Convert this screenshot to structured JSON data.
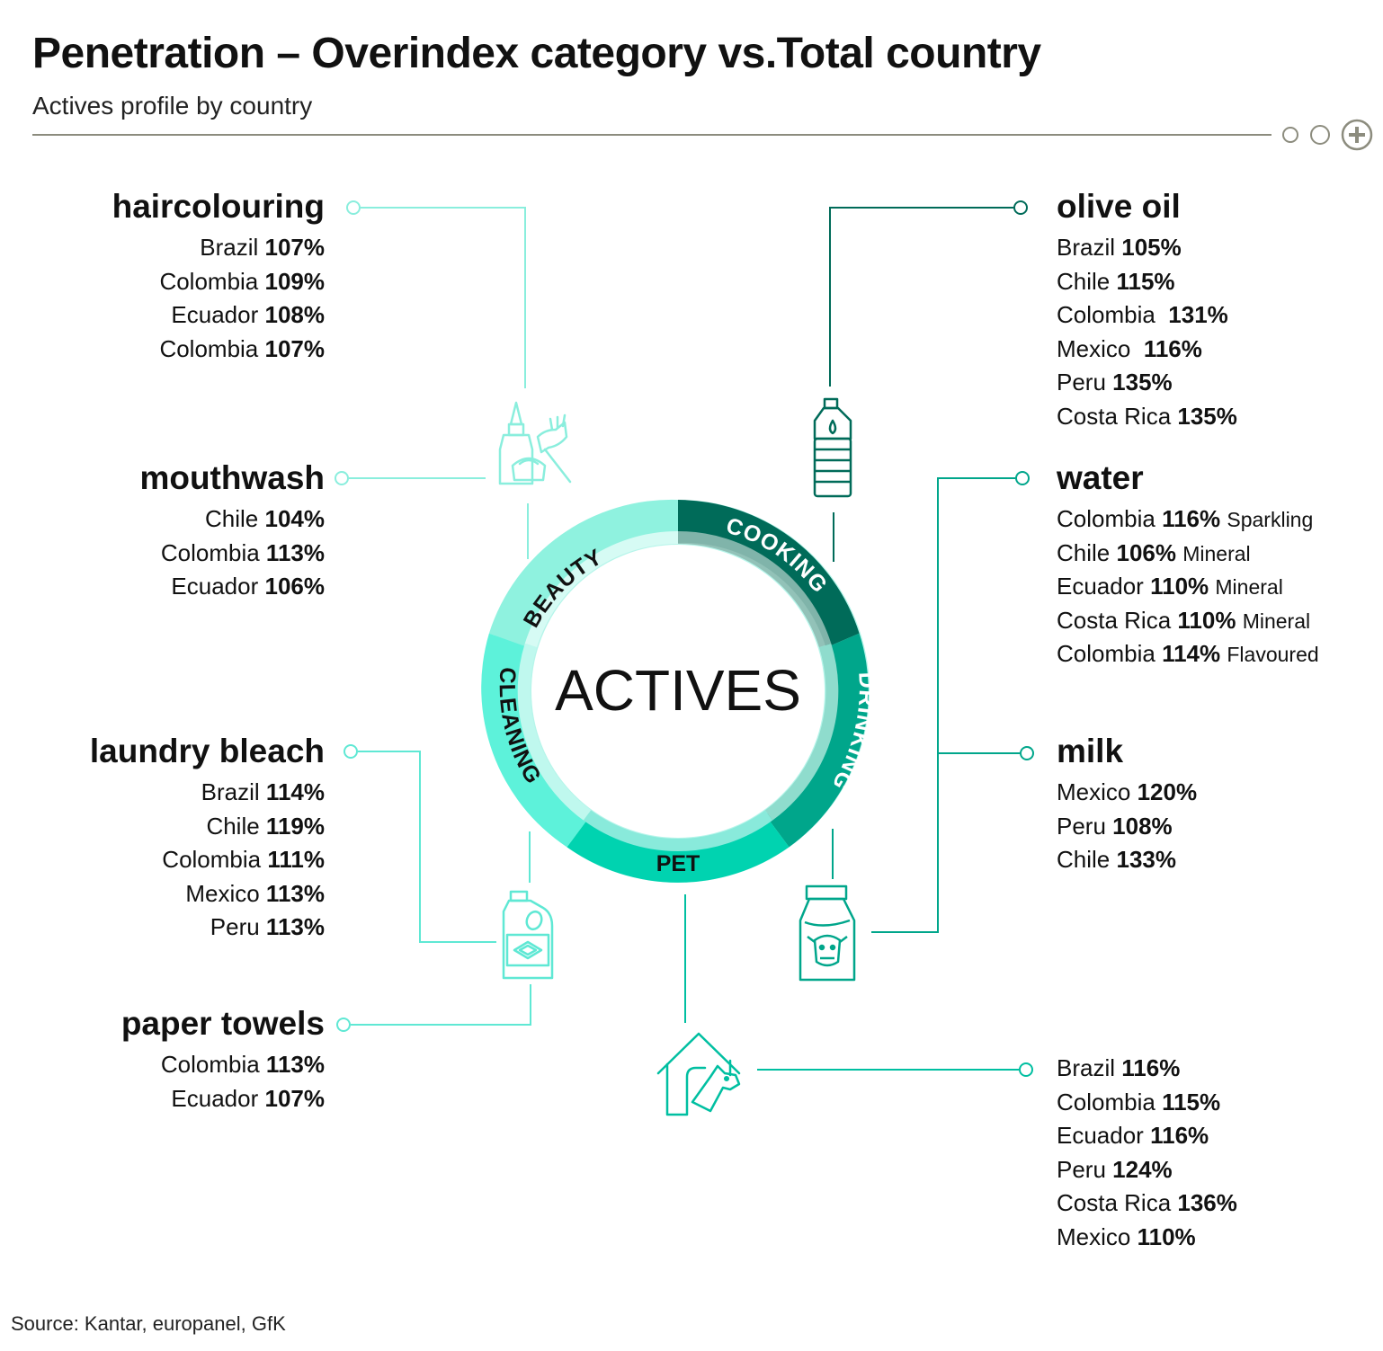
{
  "title": "Penetration – Overindex category vs.Total country",
  "subtitle": "Actives profile by country",
  "source": "Source: Kantar, europanel, GfK",
  "center_label": "ACTIVES",
  "ring": [
    {
      "label": "BEAUTY",
      "color": "#8ff2df"
    },
    {
      "label": "COOKING",
      "color": "#006b59"
    },
    {
      "label": "DRINKING",
      "color": "#00a68b"
    },
    {
      "label": "PET",
      "color": "#00d3b0"
    },
    {
      "label": "CLEANING",
      "color": "#5df2da"
    }
  ],
  "colors": {
    "beauty_line": "#8aeedd",
    "cooking_line": "#006b59",
    "drinking_line": "#00a68b",
    "pet_line": "#00bfa1",
    "cleaning_line": "#5fe8d4"
  },
  "icons": [
    "hair-dye-icon",
    "oil-bottle-icon",
    "milk-bottle-icon",
    "pet-house-icon",
    "bleach-bottle-icon"
  ],
  "categories": {
    "haircolouring": {
      "name": "haircolouring",
      "rows": [
        {
          "country": "Brazil",
          "value": "107%"
        },
        {
          "country": "Colombia",
          "value": "109%"
        },
        {
          "country": "Ecuador",
          "value": "108%"
        },
        {
          "country": "Colombia",
          "value": "107%"
        }
      ]
    },
    "mouthwash": {
      "name": "mouthwash",
      "rows": [
        {
          "country": "Chile",
          "value": "104%"
        },
        {
          "country": "Colombia",
          "value": "113%"
        },
        {
          "country": "Ecuador",
          "value": "106%"
        }
      ]
    },
    "laundry_bleach": {
      "name": "laundry bleach",
      "rows": [
        {
          "country": "Brazil",
          "value": "114%"
        },
        {
          "country": "Chile",
          "value": "119%"
        },
        {
          "country": "Colombia",
          "value": "111%"
        },
        {
          "country": "Mexico",
          "value": "113%"
        },
        {
          "country": "Peru",
          "value": "113%"
        }
      ]
    },
    "paper_towels": {
      "name": "paper towels",
      "rows": [
        {
          "country": "Colombia",
          "value": "113%"
        },
        {
          "country": "Ecuador",
          "value": "107%"
        }
      ]
    },
    "olive_oil": {
      "name": "olive oil",
      "rows": [
        {
          "country": "Brazil",
          "value": "105%"
        },
        {
          "country": "Chile",
          "value": "115%"
        },
        {
          "country": "Colombia",
          "value": "131%"
        },
        {
          "country": "Mexico",
          "value": "116%"
        },
        {
          "country": "Peru",
          "value": "135%"
        },
        {
          "country": "Costa Rica",
          "value": "135%"
        }
      ]
    },
    "water": {
      "name": "water",
      "rows": [
        {
          "country": "Colombia",
          "value": "116%",
          "type": "Sparkling"
        },
        {
          "country": "Chile",
          "value": "106%",
          "type": "Mineral"
        },
        {
          "country": "Ecuador",
          "value": "110%",
          "type": "Mineral"
        },
        {
          "country": "Costa Rica",
          "value": "110%",
          "type": "Mineral"
        },
        {
          "country": "Colombia",
          "value": "114%",
          "type": "Flavoured"
        }
      ]
    },
    "milk": {
      "name": "milk",
      "rows": [
        {
          "country": "Mexico",
          "value": "120%"
        },
        {
          "country": "Peru",
          "value": "108%"
        },
        {
          "country": "Chile",
          "value": "133%"
        }
      ]
    },
    "pet": {
      "rows": [
        {
          "country": "Brazil",
          "value": "116%"
        },
        {
          "country": "Colombia",
          "value": "115%"
        },
        {
          "country": "Ecuador",
          "value": "116%"
        },
        {
          "country": "Peru",
          "value": "124%"
        },
        {
          "country": "Costa Rica",
          "value": "136%"
        },
        {
          "country": "Mexico",
          "value": "110%"
        }
      ]
    }
  }
}
